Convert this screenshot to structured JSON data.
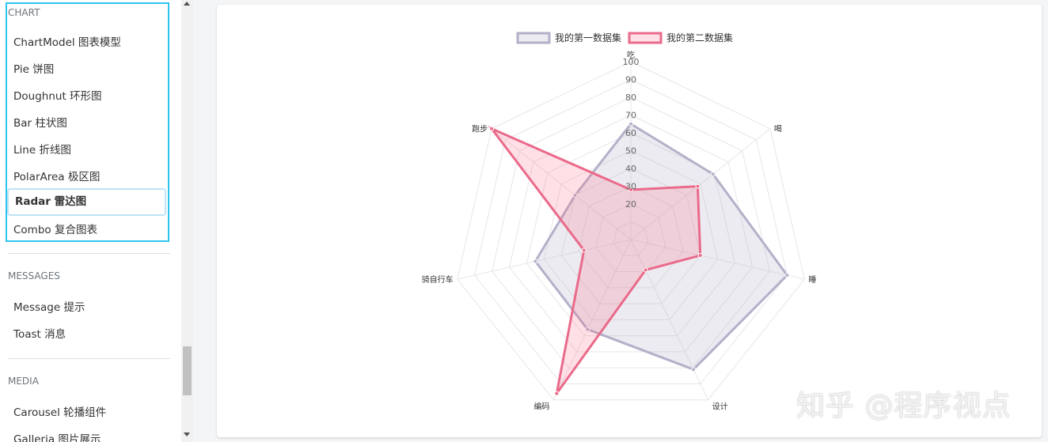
{
  "sidebar": {
    "chart_section": "CHART",
    "chart_items": [
      {
        "label": "ChartModel 图表模型"
      },
      {
        "label": "Pie 饼图"
      },
      {
        "label": "Doughnut 环形图"
      },
      {
        "label": "Bar 柱状图"
      },
      {
        "label": "Line 折线图"
      },
      {
        "label": "PolarArea 极区图"
      },
      {
        "label": "Radar 雷达图",
        "active": true
      },
      {
        "label": "Combo 复合图表"
      }
    ],
    "messages_section": "MESSAGES",
    "messages_items": [
      {
        "label": "Message 提示"
      },
      {
        "label": "Toast 消息"
      }
    ],
    "media_section": "MEDIA",
    "media_items": [
      {
        "label": "Carousel 轮播组件"
      },
      {
        "label": "Galleria 图片展示"
      }
    ]
  },
  "watermark": "知乎 @程序视点",
  "chart_data": {
    "type": "radar",
    "labels": [
      "吃",
      "喝",
      "睡",
      "设计",
      "编码",
      "骑自行车",
      "跑步"
    ],
    "rlim": [
      0,
      100
    ],
    "ticks": [
      20,
      30,
      40,
      50,
      60,
      70,
      80,
      90,
      100
    ],
    "series": [
      {
        "name": "我的第一数据集",
        "values": [
          65,
          59,
          90,
          81,
          56,
          55,
          40
        ],
        "color": "#b3b1c9",
        "fill": "rgba(179,177,201,0.25)"
      },
      {
        "name": "我的第二数据集",
        "values": [
          28,
          48,
          40,
          19,
          96,
          27,
          100
        ],
        "color": "#ea6a8a",
        "fill": "rgba(255,99,132,0.2)"
      }
    ],
    "legend_position": "top"
  }
}
